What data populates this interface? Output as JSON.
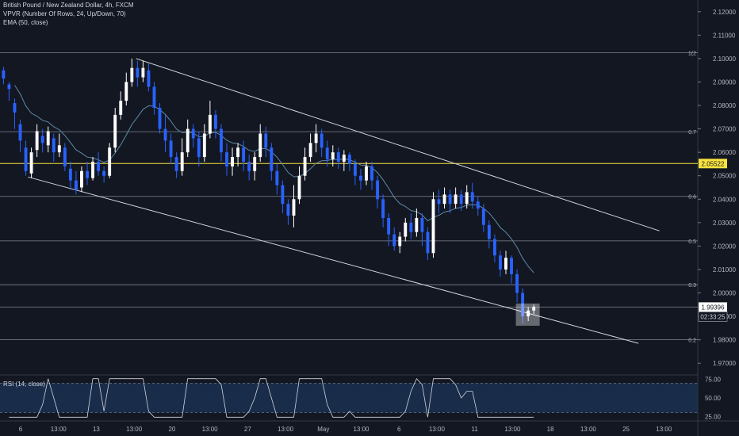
{
  "legend": {
    "symbol": "British Pound / New Zealand Dollar, 4h, FXCM",
    "vpvr": "VPVR (Number Of Rows, 24, Up/Down, 70)",
    "ema": "EMA (50, close)"
  },
  "rsi_legend": "RSI (14, close)",
  "colors": {
    "background": "#131722",
    "up": "#ffffff",
    "down": "#2962ff",
    "ema": "#5d8aa8",
    "highlight": "#f7e23e",
    "rsi_band": "#1e3a66"
  },
  "chart_data": [
    {
      "type": "candlestick",
      "ylim": [
        1.965,
        2.125
      ],
      "y_ticks": [
        "2.12000",
        "2.11000",
        "2.10000",
        "2.09000",
        "2.08000",
        "2.07000",
        "2.06000",
        "2.05000",
        "2.04000",
        "2.03000",
        "2.02000",
        "2.01000",
        "2.00000",
        "1.99000",
        "1.98000",
        "1.97000"
      ],
      "x_ticks": [
        "6",
        "13:00",
        "13",
        "13:00",
        "20",
        "13:00",
        "27",
        "13:00",
        "May",
        "13:00",
        "6",
        "13:00",
        "11",
        "13:00",
        "18",
        "13:00",
        "25",
        "13:00"
      ],
      "current_price": "1.99396",
      "countdown": "02:33:25",
      "highlight_price": "2.05522",
      "fib_levels": [
        {
          "label": "1(2",
          "price": 2.1025
        },
        {
          "label": "0.7",
          "price": 2.0688
        },
        {
          "label": "0.6",
          "price": 2.0412
        },
        {
          "label": "0.5",
          "price": 2.0222
        },
        {
          "label": "0.3",
          "price": 2.0035
        },
        {
          "label": "",
          "price": 1.994
        },
        {
          "label": "0.2",
          "price": 1.98
        }
      ],
      "channel": {
        "upper": [
          [
            0.195,
            2.1
          ],
          [
            0.945,
            2.0265
          ]
        ],
        "lower": [
          [
            0.04,
            2.0495
          ],
          [
            0.915,
            1.9785
          ]
        ]
      },
      "candles": [
        [
          0.005,
          2.095,
          2.0915,
          2.0965,
          2.089
        ],
        [
          0.013,
          2.089,
          2.087,
          2.09,
          2.082
        ],
        [
          0.021,
          2.081,
          2.077,
          2.083,
          2.07
        ],
        [
          0.029,
          2.072,
          2.065,
          2.074,
          2.06
        ],
        [
          0.037,
          2.062,
          2.052,
          2.065,
          2.05
        ],
        [
          0.045,
          2.051,
          2.06,
          2.062,
          2.049
        ],
        [
          0.053,
          2.061,
          2.069,
          2.072,
          2.058
        ],
        [
          0.061,
          2.067,
          2.064,
          2.07,
          2.06
        ],
        [
          0.069,
          2.063,
          2.069,
          2.071,
          2.06
        ],
        [
          0.077,
          2.066,
          2.06,
          2.068,
          2.056
        ],
        [
          0.085,
          2.06,
          2.063,
          2.068,
          2.058
        ],
        [
          0.093,
          2.062,
          2.054,
          2.064,
          2.052
        ],
        [
          0.101,
          2.053,
          2.048,
          2.056,
          2.044
        ],
        [
          0.109,
          2.048,
          2.044,
          2.052,
          2.042
        ],
        [
          0.117,
          2.045,
          2.052,
          2.054,
          2.043
        ],
        [
          0.125,
          2.052,
          2.049,
          2.056,
          2.046
        ],
        [
          0.133,
          2.049,
          2.056,
          2.058,
          2.048
        ],
        [
          0.141,
          2.056,
          2.052,
          2.06,
          2.05
        ],
        [
          0.149,
          2.052,
          2.05,
          2.054,
          2.047
        ],
        [
          0.157,
          2.05,
          2.062,
          2.064,
          2.049
        ],
        [
          0.165,
          2.062,
          2.076,
          2.079,
          2.06
        ],
        [
          0.173,
          2.076,
          2.082,
          2.086,
          2.074
        ],
        [
          0.181,
          2.082,
          2.09,
          2.094,
          2.08
        ],
        [
          0.189,
          2.09,
          2.096,
          2.1,
          2.088
        ],
        [
          0.197,
          2.096,
          2.092,
          2.099,
          2.088
        ],
        [
          0.205,
          2.092,
          2.096,
          2.099,
          2.09
        ],
        [
          0.213,
          2.095,
          2.088,
          2.098,
          2.086
        ],
        [
          0.221,
          2.088,
          2.079,
          2.09,
          2.076
        ],
        [
          0.229,
          2.079,
          2.07,
          2.081,
          2.068
        ],
        [
          0.237,
          2.07,
          2.065,
          2.076,
          2.06
        ],
        [
          0.245,
          2.065,
          2.058,
          2.068,
          2.055
        ],
        [
          0.253,
          2.058,
          2.052,
          2.06,
          2.049
        ],
        [
          0.261,
          2.052,
          2.06,
          2.066,
          2.05
        ],
        [
          0.269,
          2.06,
          2.07,
          2.074,
          2.058
        ],
        [
          0.277,
          2.07,
          2.066,
          2.072,
          2.062
        ],
        [
          0.285,
          2.066,
          2.058,
          2.069,
          2.054
        ],
        [
          0.293,
          2.058,
          2.068,
          2.072,
          2.056
        ],
        [
          0.301,
          2.068,
          2.076,
          2.082,
          2.066
        ],
        [
          0.309,
          2.076,
          2.07,
          2.078,
          2.066
        ],
        [
          0.317,
          2.07,
          2.06,
          2.072,
          2.056
        ],
        [
          0.325,
          2.06,
          2.054,
          2.064,
          2.05
        ],
        [
          0.333,
          2.054,
          2.058,
          2.062,
          2.05
        ],
        [
          0.341,
          2.058,
          2.062,
          2.064,
          2.054
        ],
        [
          0.349,
          2.062,
          2.056,
          2.065,
          2.052
        ],
        [
          0.357,
          2.056,
          2.052,
          2.059,
          2.048
        ],
        [
          0.365,
          2.052,
          2.058,
          2.06,
          2.048
        ],
        [
          0.373,
          2.058,
          2.068,
          2.072,
          2.056
        ],
        [
          0.381,
          2.068,
          2.062,
          2.071,
          2.058
        ],
        [
          0.389,
          2.062,
          2.052,
          2.064,
          2.048
        ],
        [
          0.397,
          2.052,
          2.046,
          2.055,
          2.042
        ],
        [
          0.405,
          2.046,
          2.038,
          2.048,
          2.034
        ],
        [
          0.413,
          2.038,
          2.033,
          2.04,
          2.029
        ],
        [
          0.421,
          2.033,
          2.04,
          2.046,
          2.028
        ],
        [
          0.429,
          2.04,
          2.05,
          2.054,
          2.038
        ],
        [
          0.437,
          2.05,
          2.058,
          2.062,
          2.048
        ],
        [
          0.445,
          2.058,
          2.064,
          2.068,
          2.056
        ],
        [
          0.453,
          2.064,
          2.068,
          2.072,
          2.06
        ],
        [
          0.461,
          2.068,
          2.062,
          2.07,
          2.058
        ],
        [
          0.469,
          2.062,
          2.057,
          2.065,
          2.054
        ],
        [
          0.477,
          2.057,
          2.06,
          2.063,
          2.054
        ],
        [
          0.485,
          2.06,
          2.056,
          2.062,
          2.053
        ],
        [
          0.493,
          2.056,
          2.059,
          2.061,
          2.052
        ],
        [
          0.501,
          2.059,
          2.055,
          2.06,
          2.052
        ],
        [
          0.509,
          2.055,
          2.05,
          2.057,
          2.046
        ],
        [
          0.517,
          2.05,
          2.048,
          2.053,
          2.044
        ],
        [
          0.525,
          2.048,
          2.054,
          2.056,
          2.046
        ],
        [
          0.533,
          2.054,
          2.048,
          2.056,
          2.044
        ],
        [
          0.541,
          2.048,
          2.04,
          2.05,
          2.036
        ],
        [
          0.549,
          2.04,
          2.032,
          2.042,
          2.028
        ],
        [
          0.557,
          2.032,
          2.025,
          2.034,
          2.02
        ],
        [
          0.565,
          2.025,
          2.02,
          2.028,
          2.018
        ],
        [
          0.573,
          2.02,
          2.024,
          2.026,
          2.017
        ],
        [
          0.581,
          2.024,
          2.03,
          2.032,
          2.022
        ],
        [
          0.589,
          2.03,
          2.026,
          2.034,
          2.023
        ],
        [
          0.597,
          2.026,
          2.032,
          2.036,
          2.024
        ],
        [
          0.605,
          2.032,
          2.026,
          2.034,
          2.02
        ],
        [
          0.613,
          2.026,
          2.017,
          2.028,
          2.014
        ],
        [
          0.621,
          2.017,
          2.04,
          2.043,
          2.015
        ],
        [
          0.629,
          2.04,
          2.038,
          2.044,
          2.034
        ],
        [
          0.637,
          2.038,
          2.042,
          2.045,
          2.036
        ],
        [
          0.645,
          2.042,
          2.038,
          2.044,
          2.034
        ],
        [
          0.653,
          2.038,
          2.042,
          2.045,
          2.036
        ],
        [
          0.661,
          2.042,
          2.038,
          2.044,
          2.035
        ],
        [
          0.669,
          2.038,
          2.043,
          2.046,
          2.036
        ],
        [
          0.677,
          2.043,
          2.039,
          2.047,
          2.036
        ],
        [
          0.685,
          2.039,
          2.036,
          2.041,
          2.033
        ],
        [
          0.693,
          2.036,
          2.029,
          2.038,
          2.026
        ],
        [
          0.701,
          2.029,
          2.023,
          2.031,
          2.019
        ],
        [
          0.709,
          2.023,
          2.016,
          2.025,
          2.013
        ],
        [
          0.717,
          2.016,
          2.01,
          2.018,
          2.007
        ],
        [
          0.725,
          2.01,
          2.015,
          2.018,
          2.008
        ],
        [
          0.733,
          2.015,
          2.008,
          2.016,
          2.004
        ],
        [
          0.741,
          2.008,
          2.0,
          2.01,
          1.996
        ],
        [
          0.749,
          2.0,
          1.99,
          2.002,
          1.987
        ],
        [
          0.757,
          1.99,
          1.9925,
          1.994,
          1.988
        ],
        [
          0.765,
          1.9925,
          1.994,
          1.995,
          1.991
        ]
      ]
    },
    {
      "type": "line",
      "title": "RSI (14, close)",
      "ylim": [
        20,
        80
      ],
      "y_ticks": [
        "75.00",
        "50.00",
        "25.00"
      ],
      "bands": [
        30,
        70
      ]
    }
  ]
}
